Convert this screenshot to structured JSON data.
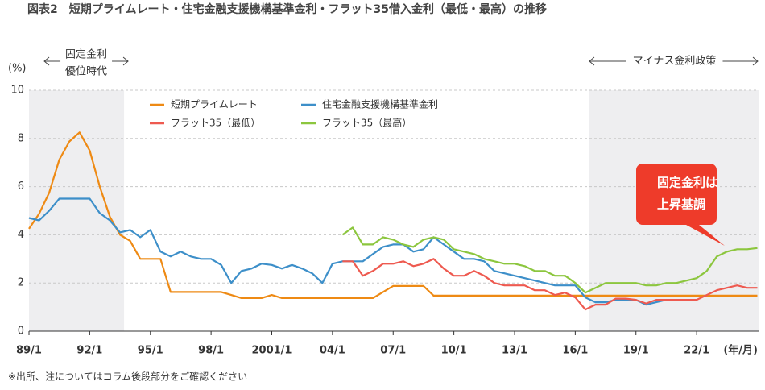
{
  "chart_data": {
    "type": "line",
    "title": "図表2　短期プライムレート・住宅金融支援機構基準金利・フラット35借入金利（最低・最高）の推移",
    "y_label": "(%)",
    "x_label": "(年/月)",
    "footnote": "※出所、注についてはコラム後段部分をご確認ください",
    "x": [
      1989,
      1989.5,
      1990,
      1990.5,
      1991,
      1991.5,
      1992,
      1992.5,
      1993,
      1993.5,
      1994,
      1994.5,
      1995,
      1995.5,
      1996,
      1996.5,
      1997,
      1997.5,
      1998,
      1998.5,
      1999,
      1999.5,
      2000,
      2000.5,
      2001,
      2001.5,
      2002,
      2002.5,
      2003,
      2003.5,
      2004,
      2004.5,
      2005,
      2005.5,
      2006,
      2006.5,
      2007,
      2007.5,
      2008,
      2008.5,
      2009,
      2009.5,
      2010,
      2010.5,
      2011,
      2011.5,
      2012,
      2012.5,
      2013,
      2013.5,
      2014,
      2014.5,
      2015,
      2015.5,
      2016,
      2016.5,
      2017,
      2017.5,
      2018,
      2018.5,
      2019,
      2019.5,
      2020,
      2020.5,
      2021,
      2021.5,
      2022,
      2022.5,
      2023,
      2023.5,
      2024,
      2024.5,
      2025
    ],
    "series": [
      {
        "name": "短期プライムレート",
        "color": "#ee8a14",
        "values": [
          4.25,
          4.875,
          5.75,
          7.125,
          7.875,
          8.25,
          7.5,
          6.0,
          4.75,
          4.0,
          3.75,
          3.0,
          3.0,
          3.0,
          1.625,
          1.625,
          1.625,
          1.625,
          1.625,
          1.625,
          1.5,
          1.375,
          1.375,
          1.375,
          1.5,
          1.375,
          1.375,
          1.375,
          1.375,
          1.375,
          1.375,
          1.375,
          1.375,
          1.375,
          1.375,
          1.625,
          1.875,
          1.875,
          1.875,
          1.875,
          1.475,
          1.475,
          1.475,
          1.475,
          1.475,
          1.475,
          1.475,
          1.475,
          1.475,
          1.475,
          1.475,
          1.475,
          1.475,
          1.475,
          1.475,
          1.475,
          1.475,
          1.475,
          1.475,
          1.475,
          1.475,
          1.475,
          1.475,
          1.475,
          1.475,
          1.475,
          1.475,
          1.475,
          1.475,
          1.475,
          1.475,
          1.475,
          1.475
        ]
      },
      {
        "name": "住宅金融支援機構基準金利",
        "color": "#3d8fc9",
        "values": [
          4.7,
          4.6,
          5.0,
          5.5,
          5.5,
          5.5,
          5.5,
          4.9,
          4.6,
          4.1,
          4.2,
          3.9,
          4.2,
          3.3,
          3.1,
          3.3,
          3.1,
          3.0,
          3.0,
          2.75,
          2.0,
          2.5,
          2.6,
          2.8,
          2.75,
          2.6,
          2.75,
          2.6,
          2.4,
          2.0,
          2.8,
          2.9,
          2.9,
          2.9,
          3.2,
          3.5,
          3.6,
          3.6,
          3.3,
          3.4,
          3.9,
          3.6,
          3.3,
          3.0,
          3.0,
          2.9,
          2.5,
          2.4,
          2.3,
          2.2,
          2.1,
          2.0,
          1.9,
          1.9,
          1.9,
          1.4,
          1.2,
          1.2,
          1.3,
          1.3,
          1.3,
          1.1,
          1.2,
          1.3,
          null,
          null,
          null,
          null,
          null,
          null,
          null,
          null,
          null
        ]
      },
      {
        "name": "フラット35（最低）",
        "color": "#ee5a50",
        "values": [
          null,
          null,
          null,
          null,
          null,
          null,
          null,
          null,
          null,
          null,
          null,
          null,
          null,
          null,
          null,
          null,
          null,
          null,
          null,
          null,
          null,
          null,
          null,
          null,
          null,
          null,
          null,
          null,
          null,
          null,
          null,
          2.9,
          2.9,
          2.3,
          2.5,
          2.8,
          2.8,
          2.9,
          2.7,
          2.8,
          3.0,
          2.6,
          2.3,
          2.3,
          2.5,
          2.3,
          2.0,
          1.9,
          1.9,
          1.9,
          1.7,
          1.7,
          1.5,
          1.6,
          1.4,
          0.9,
          1.1,
          1.1,
          1.35,
          1.35,
          1.3,
          1.15,
          1.3,
          1.3,
          1.3,
          1.3,
          1.3,
          1.5,
          1.7,
          1.8,
          1.9,
          1.8,
          1.8
        ]
      },
      {
        "name": "フラット35（最高）",
        "color": "#8cc63e",
        "values": [
          null,
          null,
          null,
          null,
          null,
          null,
          null,
          null,
          null,
          null,
          null,
          null,
          null,
          null,
          null,
          null,
          null,
          null,
          null,
          null,
          null,
          null,
          null,
          null,
          null,
          null,
          null,
          null,
          null,
          null,
          null,
          4.0,
          4.3,
          3.6,
          3.6,
          3.9,
          3.8,
          3.6,
          3.5,
          3.8,
          3.9,
          3.8,
          3.4,
          3.3,
          3.2,
          3.0,
          2.9,
          2.8,
          2.8,
          2.7,
          2.5,
          2.5,
          2.3,
          2.3,
          2.0,
          1.6,
          1.8,
          2.0,
          2.0,
          2.0,
          2.0,
          1.9,
          1.9,
          2.0,
          2.0,
          2.1,
          2.2,
          2.5,
          3.1,
          3.3,
          3.4,
          3.4,
          3.45
        ]
      }
    ],
    "xlim": [
      1989,
      2025.1
    ],
    "ylim": [
      0,
      10
    ],
    "xticks": [
      {
        "value": 1989,
        "label": "89/1"
      },
      {
        "value": 1992,
        "label": "92/1"
      },
      {
        "value": 1995,
        "label": "95/1"
      },
      {
        "value": 1998,
        "label": "98/1"
      },
      {
        "value": 2001,
        "label": "2001/1"
      },
      {
        "value": 2004,
        "label": "04/1"
      },
      {
        "value": 2007,
        "label": "07/1"
      },
      {
        "value": 2010,
        "label": "10/1"
      },
      {
        "value": 2013,
        "label": "13/1"
      },
      {
        "value": 2016,
        "label": "16/1"
      },
      {
        "value": 2019,
        "label": "19/1"
      },
      {
        "value": 2022,
        "label": "22/1"
      }
    ],
    "yticks": [
      0,
      2,
      4,
      6,
      8,
      10
    ],
    "grid": true,
    "shaded_ranges": [
      {
        "range": [
          1989,
          1993.7
        ],
        "label": [
          "固定金利",
          "優位時代"
        ]
      },
      {
        "range": [
          2016.7,
          2025.1
        ],
        "label": [
          "マイナス金利政策"
        ]
      }
    ],
    "callout": {
      "lines": [
        "固定金利は",
        "上昇基調"
      ],
      "color": "#ee3b2a"
    }
  }
}
